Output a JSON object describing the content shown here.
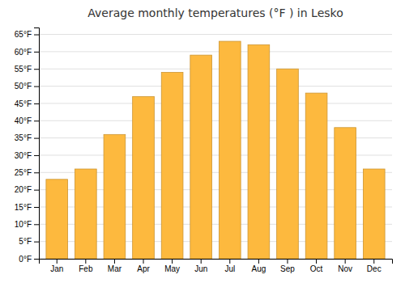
{
  "chart_data": {
    "type": "bar",
    "title": "Average monthly temperatures (°F ) in Lesko",
    "categories": [
      "Jan",
      "Feb",
      "Mar",
      "Apr",
      "May",
      "Jun",
      "Jul",
      "Aug",
      "Sep",
      "Oct",
      "Nov",
      "Dec"
    ],
    "values": [
      23,
      26,
      36,
      47,
      54,
      59,
      63,
      62,
      55,
      48,
      38,
      26
    ],
    "color": "#FDB93E",
    "ylim": [
      0,
      67
    ],
    "yticks": [
      {
        "value": 0,
        "label": "0°F"
      },
      {
        "value": 5,
        "label": "5°F"
      },
      {
        "value": 10,
        "label": "10°F"
      },
      {
        "value": 15,
        "label": "15°F"
      },
      {
        "value": 20,
        "label": "20°F"
      },
      {
        "value": 25,
        "label": "25°F"
      },
      {
        "value": 30,
        "label": "30°F"
      },
      {
        "value": 35,
        "label": "35°F"
      },
      {
        "value": 40,
        "label": "40°F"
      },
      {
        "value": 45,
        "label": "45°F"
      },
      {
        "value": 50,
        "label": "50°F"
      },
      {
        "value": 55,
        "label": "55°F"
      },
      {
        "value": 60,
        "label": "60°F"
      },
      {
        "value": 65,
        "label": "65°F"
      }
    ],
    "grid": true
  }
}
